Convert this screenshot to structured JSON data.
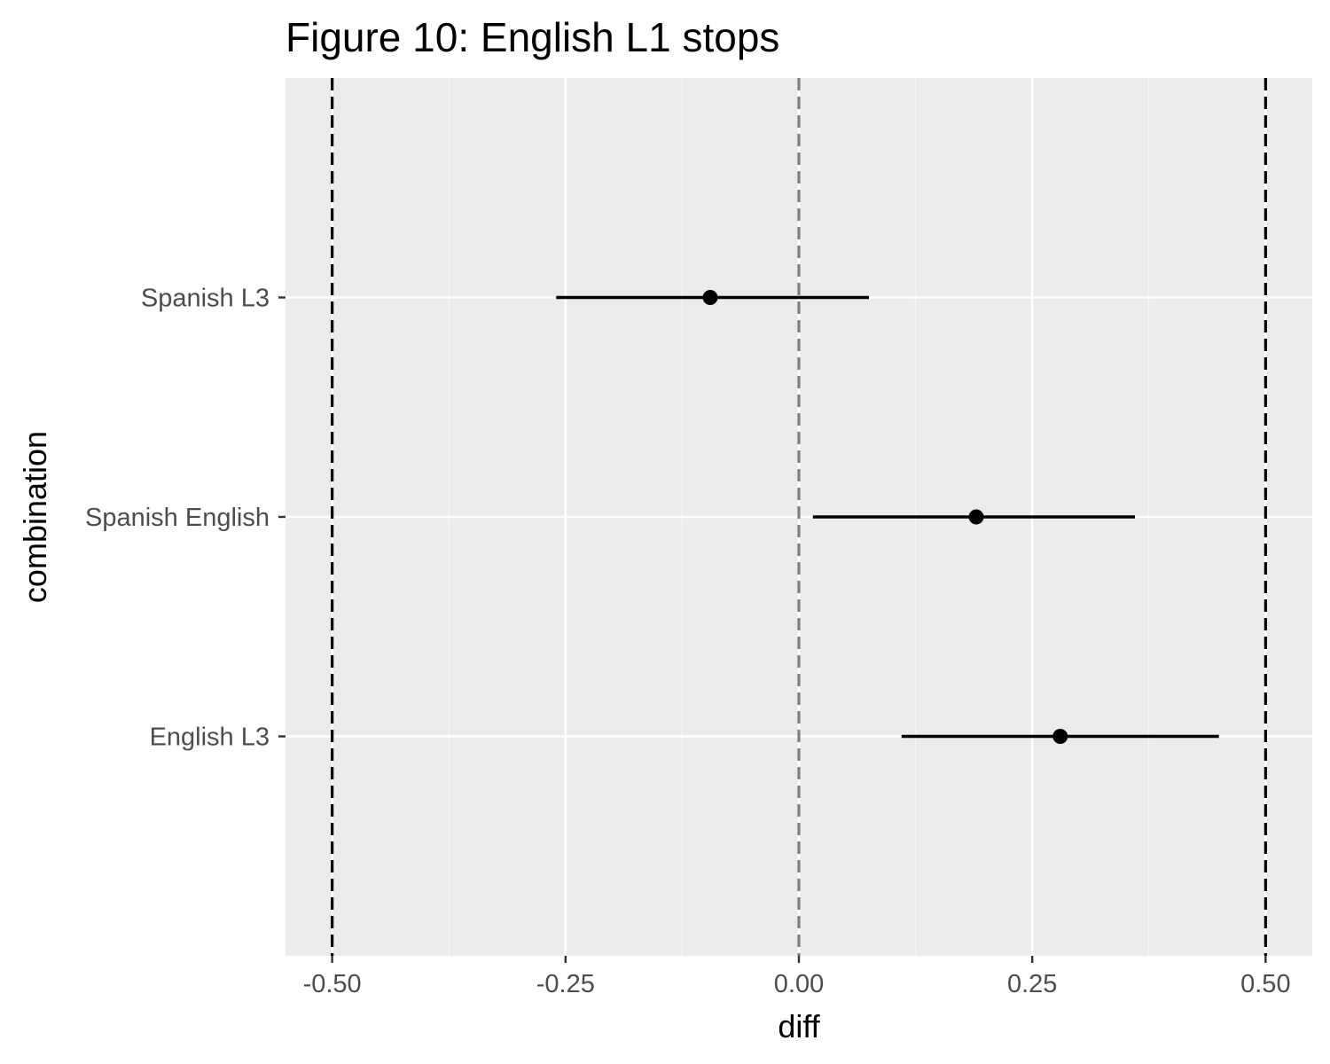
{
  "chart_data": {
    "type": "scatter",
    "subtype": "pointrange",
    "title": "Figure 10: English L1 stops",
    "xlabel": "diff",
    "ylabel": "combination",
    "xlim": [
      -0.55,
      0.55
    ],
    "x_ticks": [
      -0.5,
      -0.25,
      0.0,
      0.25,
      0.5
    ],
    "x_tick_labels": [
      "-0.50",
      "-0.25",
      "0.00",
      "0.25",
      "0.50"
    ],
    "categories": [
      "English L3",
      "Spanish English",
      "Spanish L3"
    ],
    "points": [
      {
        "category": "English L3",
        "estimate": 0.28,
        "lower": 0.11,
        "upper": 0.45
      },
      {
        "category": "Spanish English",
        "estimate": 0.19,
        "lower": 0.015,
        "upper": 0.36
      },
      {
        "category": "Spanish L3",
        "estimate": -0.095,
        "lower": -0.26,
        "upper": 0.075
      }
    ],
    "reference_lines": [
      {
        "x": -0.5,
        "style": "dashed",
        "color": "#000000"
      },
      {
        "x": 0.0,
        "style": "dashed",
        "color": "#7f7f7f"
      },
      {
        "x": 0.5,
        "style": "dashed",
        "color": "#000000"
      }
    ],
    "grid": true,
    "legend": "none",
    "colors": {
      "panel_background": "#ebebeb",
      "grid_major": "#ffffff",
      "grid_minor": "#f5f5f5",
      "point": "#000000",
      "tick_label": "#4d4d4d",
      "tick_mark": "#333333"
    }
  }
}
